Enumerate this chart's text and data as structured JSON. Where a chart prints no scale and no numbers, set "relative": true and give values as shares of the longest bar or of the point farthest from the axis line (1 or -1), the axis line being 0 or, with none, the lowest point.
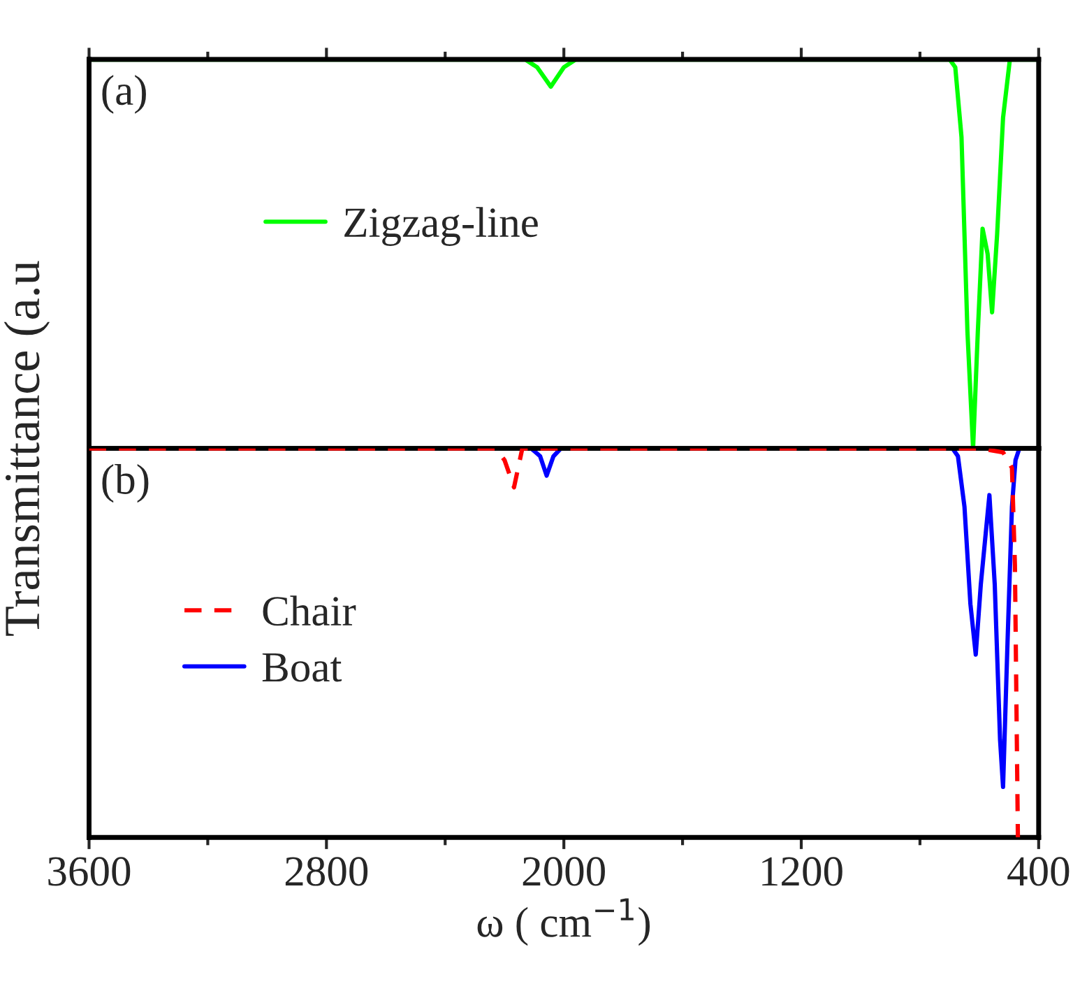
{
  "chart_data": [
    {
      "type": "line",
      "relative": true,
      "ylabel": "Transmittance (a.u",
      "annotations": [
        "(a)"
      ],
      "xlim": [
        3600,
        400
      ],
      "xticks": [
        3600,
        {
          "value": 3200,
          "label": null
        },
        2800,
        {
          "value": 2400,
          "label": null
        },
        2000,
        {
          "value": 1600,
          "label": null
        },
        1200,
        {
          "value": 800,
          "label": null
        },
        400
      ],
      "tick_labels": false,
      "legend": "top",
      "series": [
        {
          "name": "Zigzag-line",
          "color": "#00ff00",
          "line_style": "solid",
          "x": [
            3600,
            2130,
            2090,
            2044,
            2000,
            1960,
            700,
            681,
            660,
            640,
            621,
            605,
            589,
            572,
            557,
            540,
            520,
            497,
            400
          ],
          "values": [
            0,
            0,
            -0.02,
            -0.07,
            -0.02,
            0,
            0,
            -0.02,
            -0.2,
            -0.7,
            -1,
            -0.7,
            -0.435,
            -0.5,
            -0.65,
            -0.45,
            -0.15,
            0,
            0
          ]
        }
      ]
    },
    {
      "type": "line",
      "relative": true,
      "xlabel": "ω ( cm$^{−1}$)",
      "annotations": [
        "(b)"
      ],
      "xlim": [
        3600,
        400
      ],
      "xticks": [
        3600,
        {
          "value": 3200,
          "label": null
        },
        2800,
        {
          "value": 2400,
          "label": null
        },
        2000,
        {
          "value": 1600,
          "label": null
        },
        1200,
        {
          "value": 800,
          "label": null
        },
        400
      ],
      "tick_labels": "x",
      "legend": "left",
      "series": [
        {
          "name": "Chair",
          "color": "#ff0000",
          "line_style": "dashed",
          "x": [
            3600,
            2230,
            2200,
            2168,
            2140,
            600,
            520,
            490,
            480,
            470
          ],
          "values": [
            0,
            0,
            -0.03,
            -0.1,
            0,
            0,
            -0.01,
            -0.05,
            -0.3,
            -1
          ]
        },
        {
          "name": "Boat",
          "color": "#0000ff",
          "line_style": "solid",
          "x": [
            3600,
            2110,
            2080,
            2058,
            2035,
            2010,
            690,
            672,
            650,
            630,
            612,
            595,
            566,
            548,
            530,
            520,
            505,
            490,
            478,
            465
          ],
          "values": [
            0,
            0,
            -0.02,
            -0.07,
            -0.02,
            0,
            0,
            -0.02,
            -0.15,
            -0.4,
            -0.53,
            -0.35,
            -0.12,
            -0.35,
            -0.75,
            -0.87,
            -0.5,
            -0.15,
            -0.03,
            0
          ]
        }
      ]
    }
  ]
}
